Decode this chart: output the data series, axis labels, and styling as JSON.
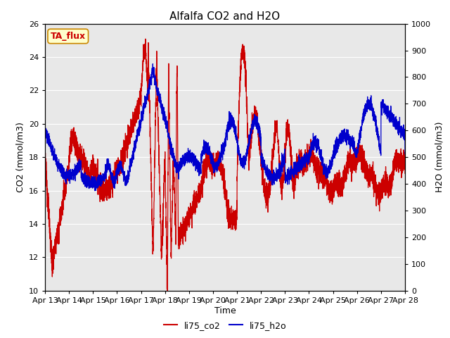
{
  "title": "Alfalfa CO2 and H2O",
  "xlabel": "Time",
  "ylabel_left": "CO2 (mmol/m3)",
  "ylabel_right": "H2O (mmol/m3)",
  "ylim_left": [
    10,
    26
  ],
  "ylim_right": [
    0,
    1000
  ],
  "yticks_left": [
    10,
    12,
    14,
    16,
    18,
    20,
    22,
    24,
    26
  ],
  "yticks_right": [
    0,
    100,
    200,
    300,
    400,
    500,
    600,
    700,
    800,
    900,
    1000
  ],
  "xtick_labels": [
    "Apr 13",
    "Apr 14",
    "Apr 15",
    "Apr 16",
    "Apr 17",
    "Apr 18",
    "Apr 19",
    "Apr 20",
    "Apr 21",
    "Apr 22",
    "Apr 23",
    "Apr 24",
    "Apr 25",
    "Apr 26",
    "Apr 27",
    "Apr 28"
  ],
  "color_co2": "#cc0000",
  "color_h2o": "#0000cc",
  "background_color": "#e8e8e8",
  "plot_bg": "#dcdcdc",
  "annotation_text": "TA_flux",
  "annotation_bg": "#ffffcc",
  "annotation_border": "#cc8800",
  "legend_co2": "li75_co2",
  "legend_h2o": "li75_h2o",
  "title_fontsize": 11,
  "axis_fontsize": 9,
  "tick_fontsize": 8,
  "linewidth": 0.9
}
